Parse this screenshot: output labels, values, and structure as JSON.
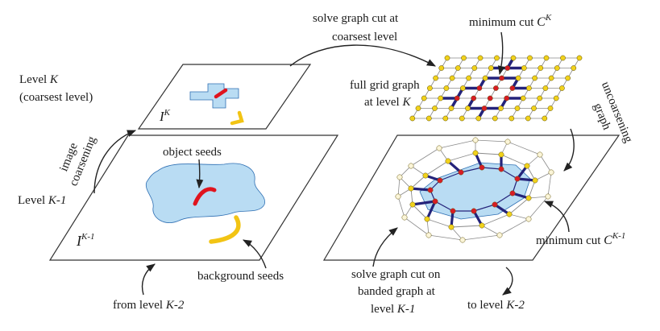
{
  "labels": {
    "solve_coarsest_1": "solve graph cut at",
    "solve_coarsest_2": "coarsest level",
    "level_k_1": "Level",
    "level_k_var": "K",
    "level_k_2": "(coarsest level)",
    "image_coarsening_1": "image",
    "image_coarsening_2": "coarsening",
    "ik_main": "I",
    "ik_sup": "K",
    "object_seeds": "object seeds",
    "level_k1_text": "Level",
    "level_k1_var": "K-1",
    "ik1_main": "I",
    "ik1_sup": "K-1",
    "background_seeds": "background seeds",
    "from_level_text": "from level",
    "from_level_var": "K-2",
    "min_cut_k_text": "minimum cut",
    "min_cut_k_var": "C",
    "min_cut_k_sup": "K",
    "full_grid_1": "full grid graph",
    "full_grid_2": "at level",
    "full_grid_var": "K",
    "graph_uncoarsening_1": "graph",
    "graph_uncoarsening_2": "uncoarsening",
    "min_cut_k1_text": "minimum cut",
    "min_cut_k1_var": "C",
    "min_cut_k1_sup": "K-1",
    "solve_banded_1": "solve graph cut on",
    "solve_banded_2": "banded graph at",
    "solve_banded_3": "level",
    "solve_banded_var": "K-1",
    "to_level_text": "to level",
    "to_level_var": "K-2"
  },
  "colors": {
    "region_fill": "#b9dcf3",
    "region_stroke": "#2e6fb3",
    "object_seed": "#e0141e",
    "background_seed": "#f2c414",
    "cut_edge": "#24237a",
    "grid_edge": "#8a8a8a",
    "node_background": "#f1d21c",
    "node_object": "#d81c24",
    "node_banded": "#fbf5d8"
  }
}
